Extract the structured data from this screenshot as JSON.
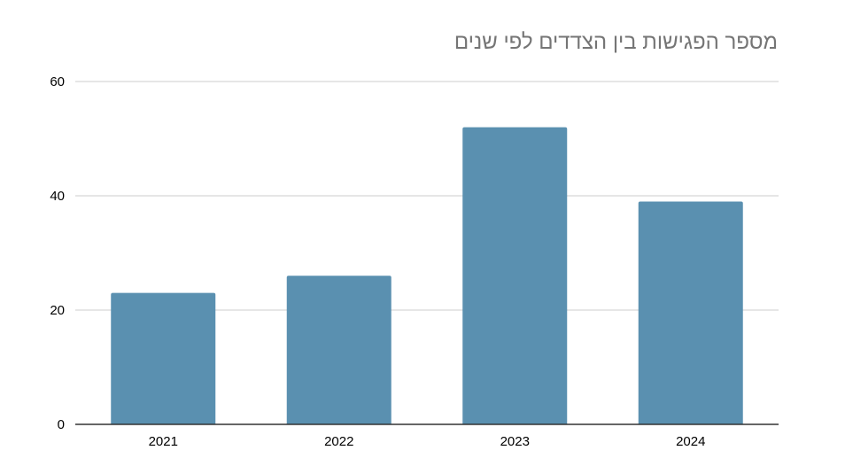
{
  "chart_data": {
    "type": "bar",
    "title": "מספר הפגישות בין הצדדים לפי שנים",
    "categories": [
      "2021",
      "2022",
      "2023",
      "2024"
    ],
    "values": [
      23,
      26,
      52,
      39
    ],
    "ylim": [
      0,
      60
    ],
    "yticks": [
      0,
      20,
      40,
      60
    ],
    "xlabel": "",
    "ylabel": "",
    "grid": true,
    "legend": "none",
    "bar_color": "#5a90b0",
    "grid_color": "#cccccc",
    "axis_color": "#333333"
  }
}
